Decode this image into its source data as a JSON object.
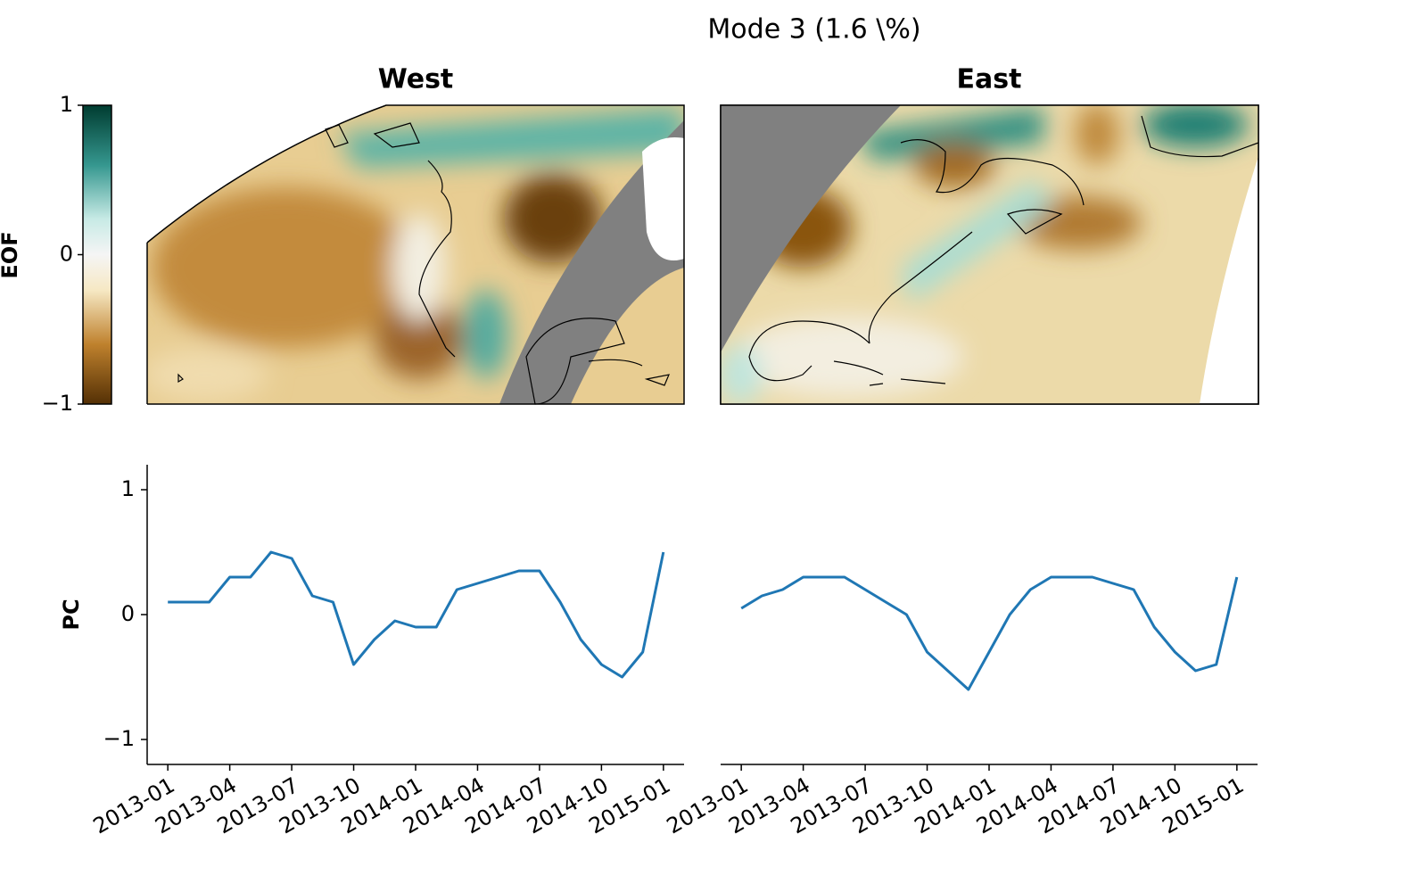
{
  "figure": {
    "title": "Mode 3 (1.6 \\%)",
    "colorbar": {
      "label": "EOF",
      "ylim": [
        -1,
        1
      ],
      "yticks": [
        {
          "value": -1,
          "label": "−1"
        },
        0,
        1
      ]
    }
  },
  "chart_data": [
    {
      "type": "map",
      "title": "West"
    },
    {
      "type": "map",
      "title": "East"
    },
    {
      "type": "line",
      "ylabel": "PC",
      "x": [
        "2013-01",
        "2013-02",
        "2013-03",
        "2013-04",
        "2013-05",
        "2013-06",
        "2013-07",
        "2013-08",
        "2013-09",
        "2013-10",
        "2013-11",
        "2013-12",
        "2014-01",
        "2014-02",
        "2014-03",
        "2014-04",
        "2014-05",
        "2014-06",
        "2014-07",
        "2014-08",
        "2014-09",
        "2014-10",
        "2014-11",
        "2014-12",
        "2015-01"
      ],
      "series": [
        {
          "color": "#1f77b4",
          "values": [
            0.1,
            0.1,
            0.1,
            0.3,
            0.3,
            0.5,
            0.45,
            0.15,
            0.1,
            -0.4,
            -0.2,
            -0.05,
            -0.1,
            -0.1,
            0.2,
            0.25,
            0.3,
            0.35,
            0.35,
            0.1,
            -0.2,
            -0.4,
            -0.5,
            -0.3,
            0.5
          ]
        }
      ],
      "xlim": [
        "2012-12",
        "2015-02"
      ],
      "xticks": [
        "2013-01",
        "2013-04",
        "2013-07",
        "2013-10",
        "2014-01",
        "2014-04",
        "2014-07",
        "2014-10",
        "2015-01"
      ],
      "ylim": [
        -1.2,
        1.2
      ],
      "yticks": [
        {
          "value": -1,
          "label": "−1"
        },
        0,
        1
      ]
    },
    {
      "type": "line",
      "x": [
        "2013-01",
        "2013-02",
        "2013-03",
        "2013-04",
        "2013-05",
        "2013-06",
        "2013-07",
        "2013-08",
        "2013-09",
        "2013-10",
        "2013-11",
        "2013-12",
        "2014-01",
        "2014-02",
        "2014-03",
        "2014-04",
        "2014-05",
        "2014-06",
        "2014-07",
        "2014-08",
        "2014-09",
        "2014-10",
        "2014-11",
        "2014-12",
        "2015-01"
      ],
      "series": [
        {
          "color": "#1f77b4",
          "values": [
            0.05,
            0.15,
            0.2,
            0.3,
            0.3,
            0.3,
            0.2,
            0.1,
            0.0,
            -0.3,
            -0.45,
            -0.6,
            -0.3,
            0.0,
            0.2,
            0.3,
            0.3,
            0.3,
            0.25,
            0.2,
            -0.1,
            -0.3,
            -0.45,
            -0.4,
            0.3
          ]
        }
      ],
      "xlim": [
        "2012-12",
        "2015-02"
      ],
      "xticks": [
        "2013-01",
        "2013-04",
        "2013-07",
        "2013-10",
        "2014-01",
        "2014-04",
        "2014-07",
        "2014-10",
        "2015-01"
      ],
      "ylim": [
        -1.2,
        1.2
      ]
    }
  ]
}
